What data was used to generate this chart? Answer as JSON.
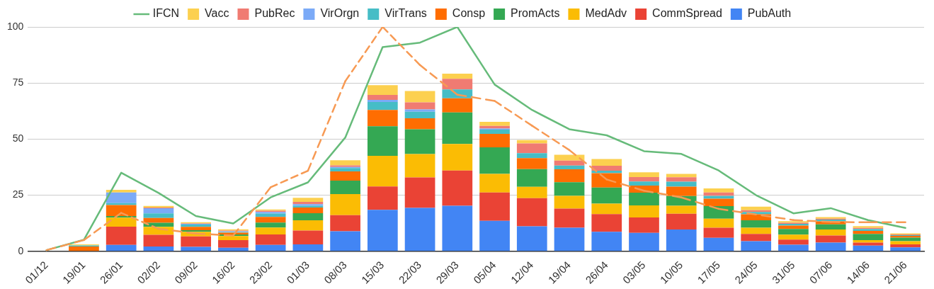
{
  "chart_data": {
    "type": "bar",
    "stacked": true,
    "categories": [
      "01/12",
      "19/01",
      "26/01",
      "02/02",
      "09/02",
      "16/02",
      "23/02",
      "01/03",
      "08/03",
      "15/03",
      "22/03",
      "29/03",
      "05/04",
      "12/04",
      "19/04",
      "26/04",
      "03/05",
      "10/05",
      "17/05",
      "24/05",
      "31/05",
      "07/06",
      "14/06",
      "21/06"
    ],
    "ylim": [
      0,
      100
    ],
    "yticks": [
      0,
      25,
      50,
      75,
      100
    ],
    "grid": "y",
    "legend": "top",
    "series": [
      {
        "name": "PubAuth",
        "color": "#4285f4",
        "values": [
          0,
          0,
          2.8,
          2.1,
          2,
          1.6,
          2.8,
          3.1,
          8.9,
          18.5,
          19.3,
          20.3,
          13.6,
          11.1,
          10.5,
          8.7,
          8.2,
          9.7,
          6,
          4.5,
          2.9,
          3.9,
          2.5,
          1.7
        ]
      },
      {
        "name": "CommSpread",
        "color": "#ea4335",
        "values": [
          0,
          0,
          8.2,
          5.2,
          4.6,
          3.4,
          4.7,
          6.1,
          7.2,
          10.4,
          13.6,
          15.7,
          12.6,
          12.6,
          8.5,
          7.9,
          6.9,
          7,
          4.5,
          3.2,
          2.3,
          3.1,
          1.4,
          1.4
        ]
      },
      {
        "name": "MedAdv",
        "color": "#fbbc04",
        "values": [
          0,
          0,
          4,
          3.6,
          2.1,
          1.8,
          3.1,
          4.6,
          9.4,
          13.6,
          10.4,
          11.8,
          8.3,
          5,
          5.7,
          4.6,
          5.3,
          3.6,
          4,
          2.8,
          2.2,
          2.7,
          1.1,
          1.4
        ]
      },
      {
        "name": "PromActs",
        "color": "#34a853",
        "values": [
          0,
          0,
          0.7,
          1.8,
          0.7,
          0.7,
          2.2,
          3.2,
          6,
          13.2,
          11.1,
          14.1,
          11.8,
          7.9,
          6.1,
          7.2,
          5.7,
          4.3,
          5.6,
          3.3,
          2.5,
          2.3,
          2.7,
          1.6
        ]
      },
      {
        "name": "Consp",
        "color": "#ff6d01",
        "values": [
          0,
          2.1,
          4.9,
          2.1,
          1.5,
          0.8,
          2.5,
          2.5,
          4.1,
          7.3,
          4.9,
          6.3,
          6,
          4.9,
          5.7,
          6.4,
          3.2,
          4.2,
          3.3,
          2.7,
          1.5,
          1.3,
          1.4,
          0.8
        ]
      },
      {
        "name": "VirTrans",
        "color": "#46bdc6",
        "values": [
          0,
          0.5,
          0.9,
          2.1,
          1,
          0.3,
          1.5,
          0.8,
          1.5,
          3.5,
          2.9,
          3.9,
          1.9,
          2.2,
          1.7,
          1.1,
          1.8,
          2.2,
          1.3,
          1,
          0.8,
          0.8,
          0.8,
          0.3
        ]
      },
      {
        "name": "VirOrgn",
        "color": "#7baaf7",
        "values": [
          0,
          0,
          4.7,
          2.3,
          0.3,
          0.3,
          0.7,
          0.7,
          0.5,
          1,
          1,
          0,
          0.5,
          0,
          0,
          0,
          0,
          0,
          0,
          0,
          0,
          0,
          0,
          0
        ]
      },
      {
        "name": "PubRec",
        "color": "#f07b72",
        "values": [
          0,
          null,
          0,
          0.3,
          0.2,
          0.3,
          0.6,
          1,
          0.7,
          2.2,
          3.2,
          4.8,
          1.2,
          4.4,
          2.2,
          2.2,
          2,
          2,
          1.5,
          0.8,
          0.5,
          0.4,
          0.5,
          0.3
        ]
      },
      {
        "name": "Vacc",
        "color": "#fcd04f",
        "values": [
          0,
          0.5,
          1.2,
          0.7,
          0.5,
          0.6,
          0.5,
          1.8,
          2.3,
          4.3,
          5,
          2.3,
          1.8,
          1.5,
          2.6,
          3,
          2.1,
          1.5,
          1.8,
          1.6,
          0.7,
          0.7,
          0.8,
          0.5
        ]
      },
      {
        "name": "IFCN",
        "type": "line",
        "line_style": "solid",
        "color": "#66bb7a",
        "values": [
          0.5,
          5.1,
          35,
          26,
          15.7,
          12.4,
          24,
          30.7,
          50.7,
          91,
          93,
          100,
          74.3,
          63,
          54.4,
          51.7,
          44.6,
          43.4,
          36,
          25,
          16.9,
          19.2,
          13.9,
          10.4
        ]
      },
      {
        "type": "line",
        "line_style": "dashed",
        "color": "#f79a54",
        "values": [
          0.5,
          5,
          17.1,
          10,
          7.9,
          7,
          28.5,
          35.9,
          75.8,
          100,
          83,
          69.8,
          67,
          56,
          45.1,
          32,
          27,
          24,
          18.9,
          16.4,
          13.9,
          13.1,
          12.9,
          12.9
        ]
      }
    ]
  }
}
